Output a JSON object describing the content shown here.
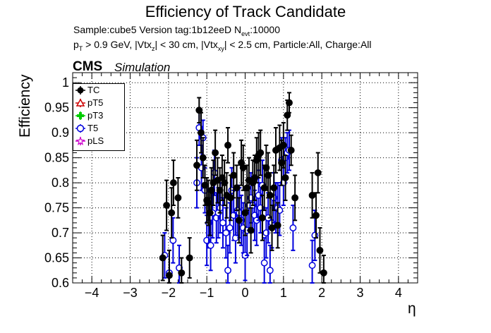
{
  "header": {
    "title": "Efficiency of Track Candidate",
    "line1_main": "Sample:cube5   Version tag:1b12eeD  N",
    "line1_sub": "evt",
    "line1_end": ":10000",
    "line2_p": "p",
    "line2_T": "T",
    "line2_a": " > 0.9 GeV, |Vtx",
    "line2_z": "z",
    "line2_b": "| < 30 cm, |Vtx",
    "line2_xy": "xy",
    "line2_c": "| < 2.5 cm, Particle:All, Charge:All",
    "cms": "CMS",
    "simulation": "Simulation"
  },
  "chart_data": {
    "type": "scatter",
    "title": "Efficiency of Track Candidate",
    "xlabel": "η",
    "ylabel": "Efficiency",
    "xlim": [
      -4.5,
      4.5
    ],
    "ylim": [
      0.6,
      1.02
    ],
    "xticks": [
      "−4",
      "−3",
      "−2",
      "−1",
      "0",
      "1",
      "2",
      "3",
      "4"
    ],
    "yticks": [
      "0.6",
      "0.65",
      "0.7",
      "0.75",
      "0.8",
      "0.85",
      "0.9",
      "0.95",
      "1"
    ],
    "grid": true,
    "legend_position": "top-left",
    "legend": [
      {
        "name": "TC",
        "color": "#000000",
        "marker": "filled-circle"
      },
      {
        "name": "pT5",
        "color": "#cc0000",
        "marker": "open-triangle"
      },
      {
        "name": "pT3",
        "color": "#00cc00",
        "marker": "filled-cross"
      },
      {
        "name": "T5",
        "color": "#0000dd",
        "marker": "open-circle"
      },
      {
        "name": "pLS",
        "color": "#cc00cc",
        "marker": "open-star"
      }
    ],
    "series": [
      {
        "name": "TC",
        "color": "#000000",
        "x": [
          -2.15,
          -2.05,
          -1.98,
          -1.92,
          -1.87,
          -1.75,
          -1.66,
          -1.45,
          -1.26,
          -1.2,
          -1.15,
          -1.1,
          -1.05,
          -1.0,
          -0.96,
          -0.92,
          -0.88,
          -0.83,
          -0.78,
          -0.72,
          -0.66,
          -0.6,
          -0.54,
          -0.48,
          -0.45,
          -0.38,
          -0.3,
          -0.22,
          -0.16,
          -0.1,
          -0.05,
          0.0,
          0.05,
          0.1,
          0.15,
          0.2,
          0.25,
          0.3,
          0.35,
          0.4,
          0.45,
          0.5,
          0.55,
          0.6,
          0.65,
          0.7,
          0.75,
          0.8,
          0.85,
          0.9,
          0.95,
          1.0,
          1.05,
          1.1,
          1.15,
          1.2,
          1.3,
          1.75,
          1.85,
          1.9,
          1.95,
          2.05
        ],
        "y": [
          0.65,
          0.755,
          0.615,
          0.74,
          0.8,
          0.77,
          0.62,
          0.65,
          0.835,
          0.945,
          0.9,
          0.85,
          0.795,
          0.765,
          0.76,
          0.74,
          0.785,
          0.8,
          0.86,
          0.805,
          0.785,
          0.81,
          0.8,
          0.775,
          0.875,
          0.77,
          0.815,
          0.79,
          0.725,
          0.84,
          0.83,
          0.74,
          0.79,
          0.805,
          0.705,
          0.8,
          0.81,
          0.845,
          0.855,
          0.86,
          0.73,
          0.79,
          0.83,
          0.815,
          0.775,
          0.71,
          0.79,
          0.865,
          0.715,
          0.87,
          0.84,
          0.875,
          0.81,
          0.935,
          0.96,
          0.865,
          0.77,
          0.775,
          0.735,
          0.82,
          0.665,
          0.62
        ],
        "err": [
          0.045,
          0.05,
          0.05,
          0.05,
          0.045,
          0.04,
          0.03,
          0.04,
          0.05,
          0.025,
          0.04,
          0.04,
          0.04,
          0.045,
          0.045,
          0.045,
          0.045,
          0.045,
          0.045,
          0.045,
          0.045,
          0.045,
          0.045,
          0.045,
          0.035,
          0.045,
          0.045,
          0.045,
          0.045,
          0.045,
          0.045,
          0.045,
          0.045,
          0.045,
          0.045,
          0.045,
          0.045,
          0.045,
          0.045,
          0.045,
          0.045,
          0.045,
          0.045,
          0.045,
          0.045,
          0.045,
          0.045,
          0.045,
          0.045,
          0.045,
          0.045,
          0.045,
          0.045,
          0.03,
          0.02,
          0.03,
          0.045,
          0.045,
          0.045,
          0.04,
          0.045,
          0.035
        ]
      },
      {
        "name": "T5",
        "color": "#0000dd",
        "x": [
          -2.1,
          -1.98,
          -1.88,
          -1.72,
          -1.26,
          -1.2,
          -1.14,
          -1.1,
          -1.05,
          -1.0,
          -0.95,
          -0.9,
          -0.85,
          -0.8,
          -0.75,
          -0.7,
          -0.65,
          -0.58,
          -0.5,
          -0.45,
          -0.4,
          -0.35,
          -0.3,
          -0.25,
          -0.2,
          -0.15,
          -0.1,
          -0.05,
          0.0,
          0.05,
          0.1,
          0.15,
          0.2,
          0.25,
          0.3,
          0.35,
          0.4,
          0.45,
          0.5,
          0.55,
          0.6,
          0.65,
          0.7,
          0.75,
          0.8,
          0.85,
          0.9,
          0.95,
          1.0,
          1.05,
          1.1,
          1.15,
          1.25,
          1.75,
          1.82
        ],
        "y": [
          0.655,
          0.62,
          0.685,
          0.63,
          0.8,
          0.91,
          0.83,
          0.89,
          0.785,
          0.685,
          0.72,
          0.675,
          0.74,
          0.82,
          0.73,
          0.74,
          0.75,
          0.72,
          0.7,
          0.625,
          0.71,
          0.785,
          0.735,
          0.69,
          0.745,
          0.74,
          0.725,
          0.71,
          0.655,
          0.705,
          0.755,
          0.77,
          0.755,
          0.735,
          0.725,
          0.775,
          0.75,
          0.795,
          0.64,
          0.7,
          0.73,
          0.625,
          0.72,
          0.77,
          0.75,
          0.75,
          0.745,
          0.845,
          0.8,
          0.85,
          0.86,
          0.865,
          0.71,
          0.635,
          0.695
        ],
        "err": [
          0.045,
          0.045,
          0.045,
          0.045,
          0.05,
          0.035,
          0.045,
          0.035,
          0.045,
          0.05,
          0.05,
          0.05,
          0.05,
          0.045,
          0.05,
          0.05,
          0.05,
          0.05,
          0.05,
          0.05,
          0.05,
          0.045,
          0.05,
          0.05,
          0.05,
          0.05,
          0.05,
          0.05,
          0.05,
          0.05,
          0.05,
          0.05,
          0.05,
          0.05,
          0.05,
          0.05,
          0.05,
          0.05,
          0.05,
          0.05,
          0.05,
          0.05,
          0.05,
          0.05,
          0.05,
          0.05,
          0.05,
          0.045,
          0.045,
          0.04,
          0.04,
          0.04,
          0.045,
          0.05,
          0.05
        ]
      }
    ]
  }
}
